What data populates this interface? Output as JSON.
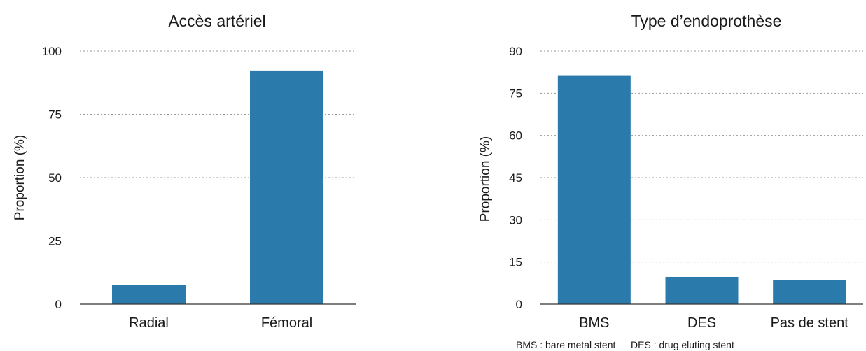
{
  "chart_data": [
    {
      "type": "bar",
      "title": "Accès artériel",
      "ylabel": "Proportion (%)",
      "xlabel": "",
      "categories": [
        "Radial",
        "Fémoral"
      ],
      "values": [
        7.7,
        92.3
      ],
      "ylim": [
        0,
        100
      ],
      "yticks": [
        0,
        25,
        50,
        75,
        100
      ],
      "grid": true,
      "bar_color": "#2a7bab"
    },
    {
      "type": "bar",
      "title": "Type d’endoprothèse",
      "ylabel": "Proportion (%)",
      "xlabel": "",
      "categories": [
        "BMS",
        "DES",
        "Pas de stent"
      ],
      "values": [
        81.4,
        9.7,
        8.6
      ],
      "ylim": [
        0,
        90
      ],
      "yticks": [
        0,
        15,
        30,
        45,
        60,
        75,
        90
      ],
      "grid": true,
      "bar_color": "#2a7bab"
    }
  ],
  "footnote": {
    "bms": "BMS : bare metal stent",
    "des": "DES : drug eluting stent"
  }
}
